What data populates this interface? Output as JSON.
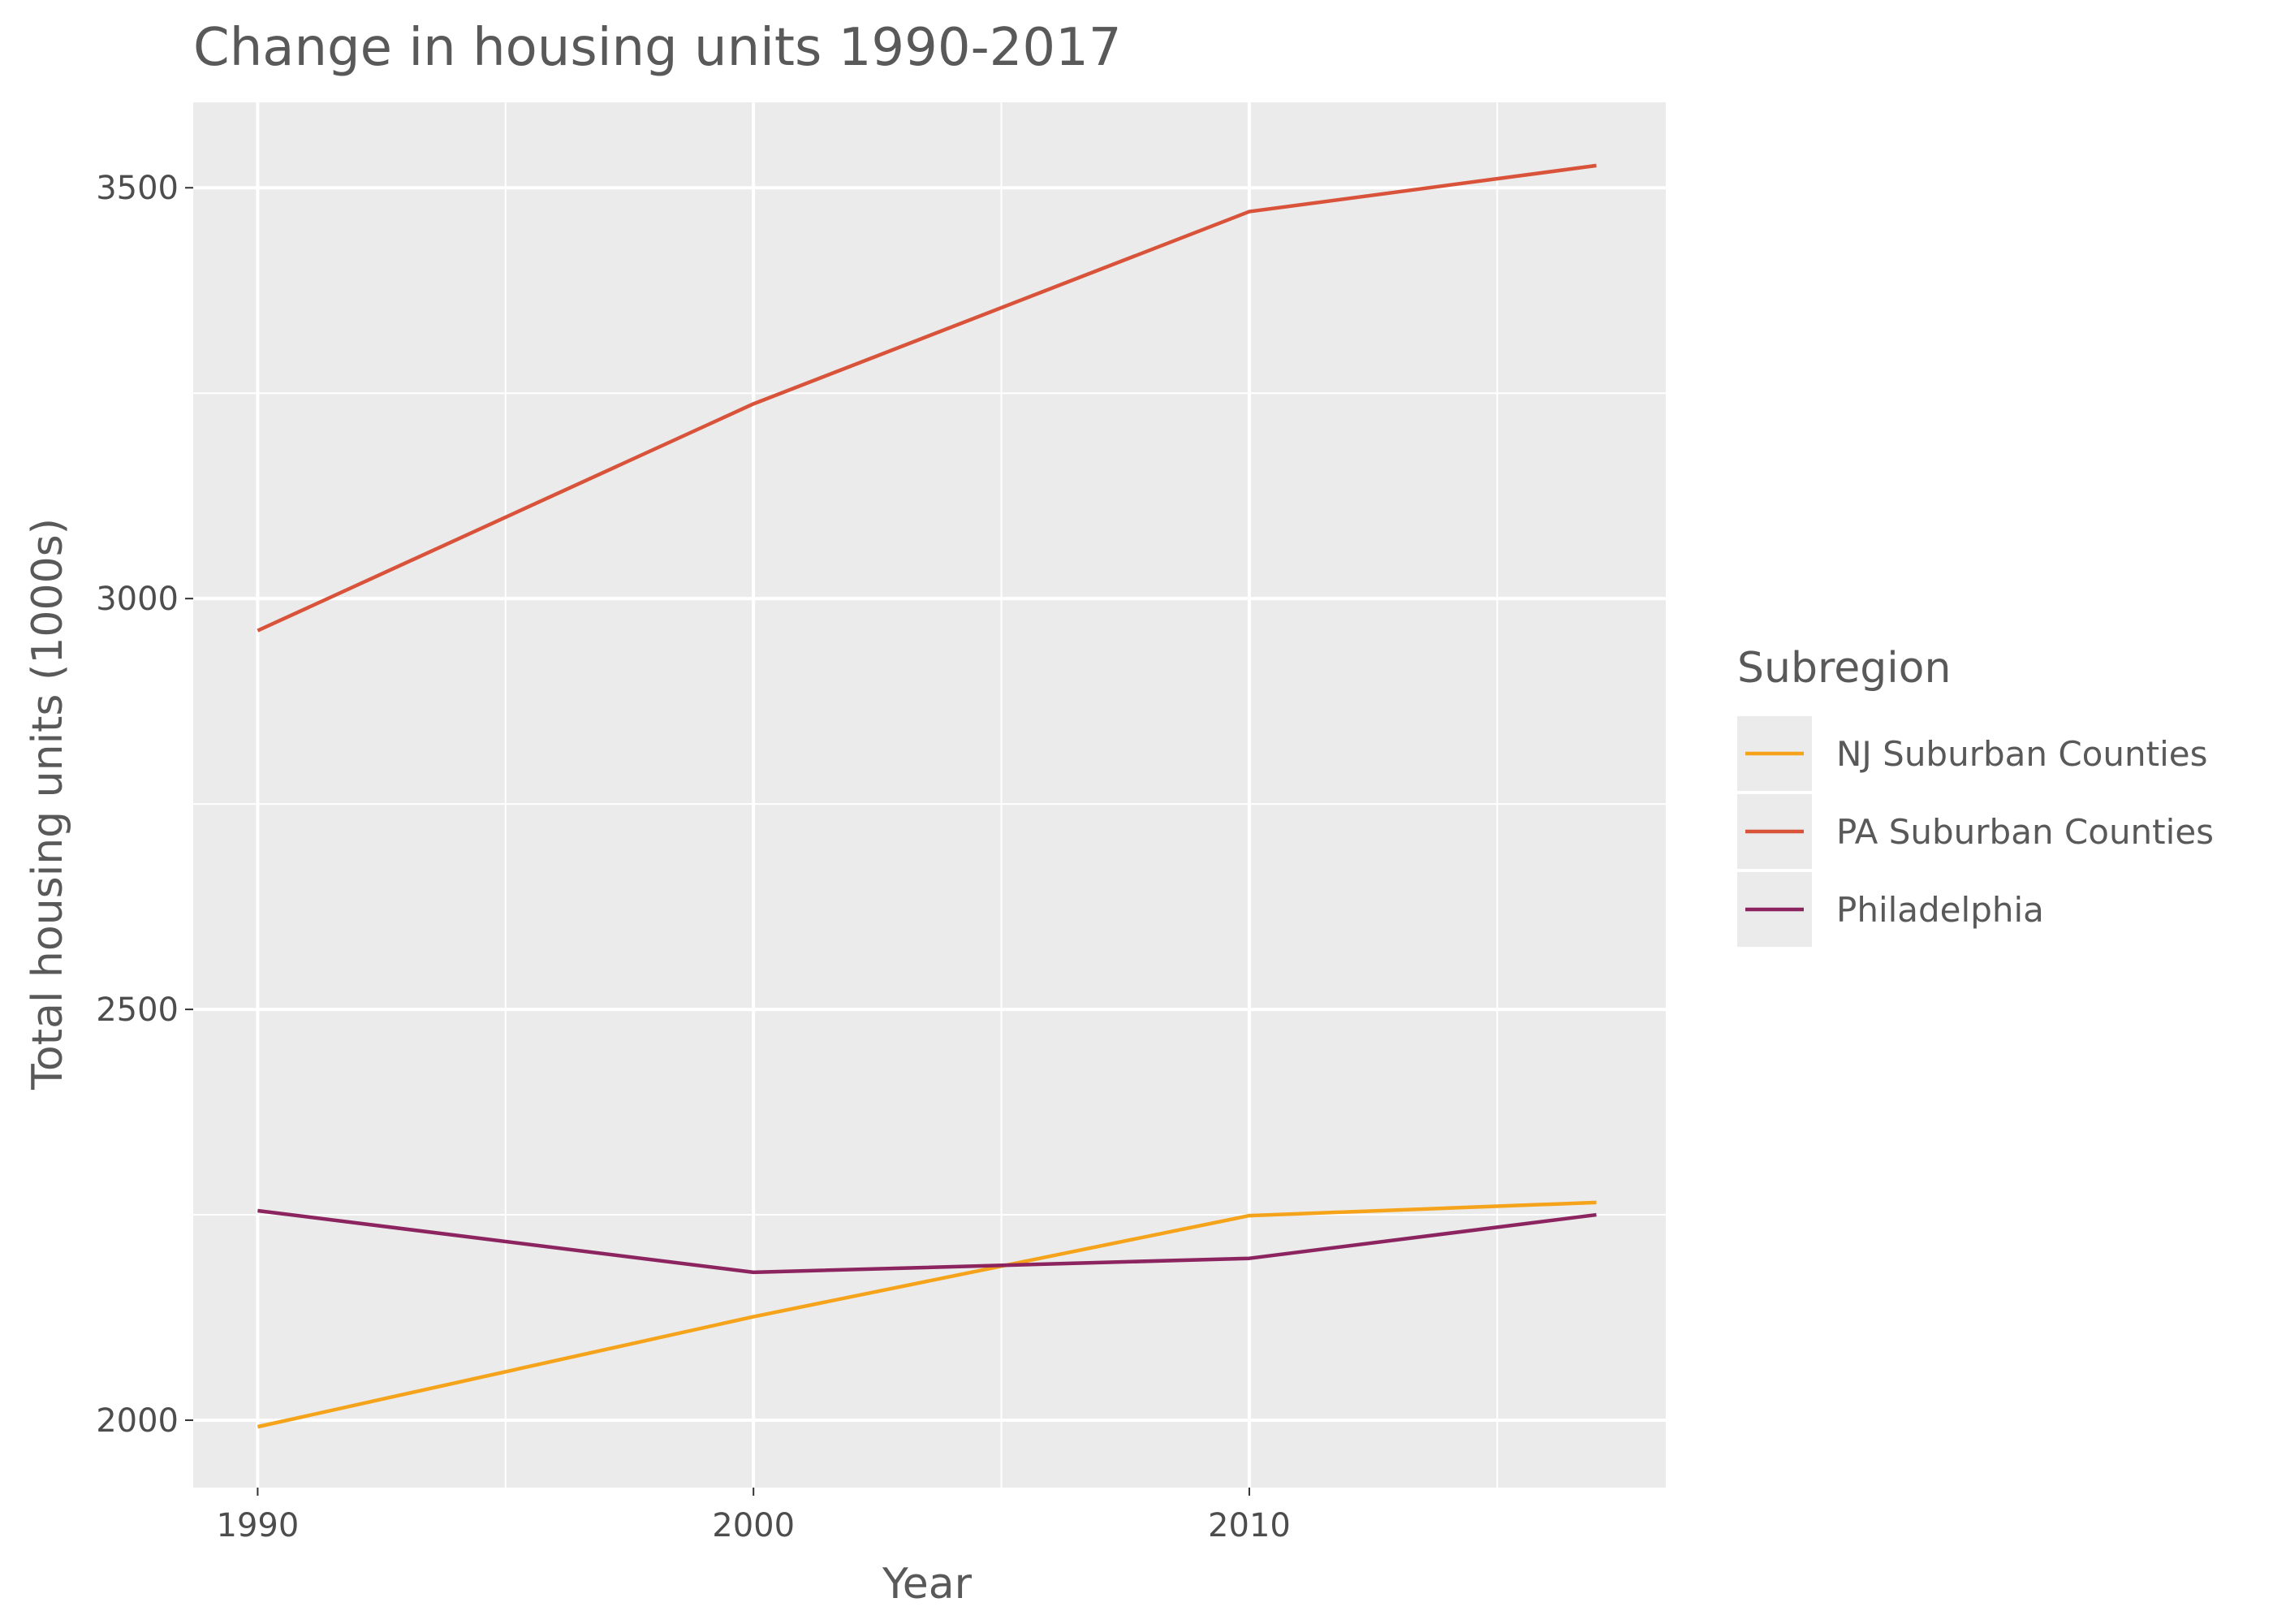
{
  "chart_data": {
    "type": "line",
    "title": "Change in housing units 1990-2017",
    "xlabel": "Year",
    "ylabel": "Total housing units (1000s)",
    "xlim": [
      1988.7,
      2018.4
    ],
    "ylim": [
      1918,
      3604
    ],
    "x_ticks": [
      1990,
      2000,
      2010
    ],
    "x_minor": [
      1995,
      2005,
      2015
    ],
    "y_ticks": [
      2000,
      2500,
      3000,
      3500
    ],
    "y_minor": [
      2250,
      2750,
      3250
    ],
    "grid": true,
    "legend": {
      "title": "Subregion",
      "position": "right"
    },
    "x": [
      1990,
      2000,
      2010,
      2017
    ],
    "series": [
      {
        "name": "NJ Suburban Counties",
        "color": "#f5a31a",
        "values": [
          1992,
          2126,
          2249,
          2265
        ]
      },
      {
        "name": "PA Suburban Counties",
        "color": "#d9533a",
        "values": [
          2961,
          3237,
          3471,
          3527
        ]
      },
      {
        "name": "Philadelphia",
        "color": "#8c2460",
        "values": [
          2255,
          2180,
          2197,
          2250
        ]
      }
    ]
  }
}
